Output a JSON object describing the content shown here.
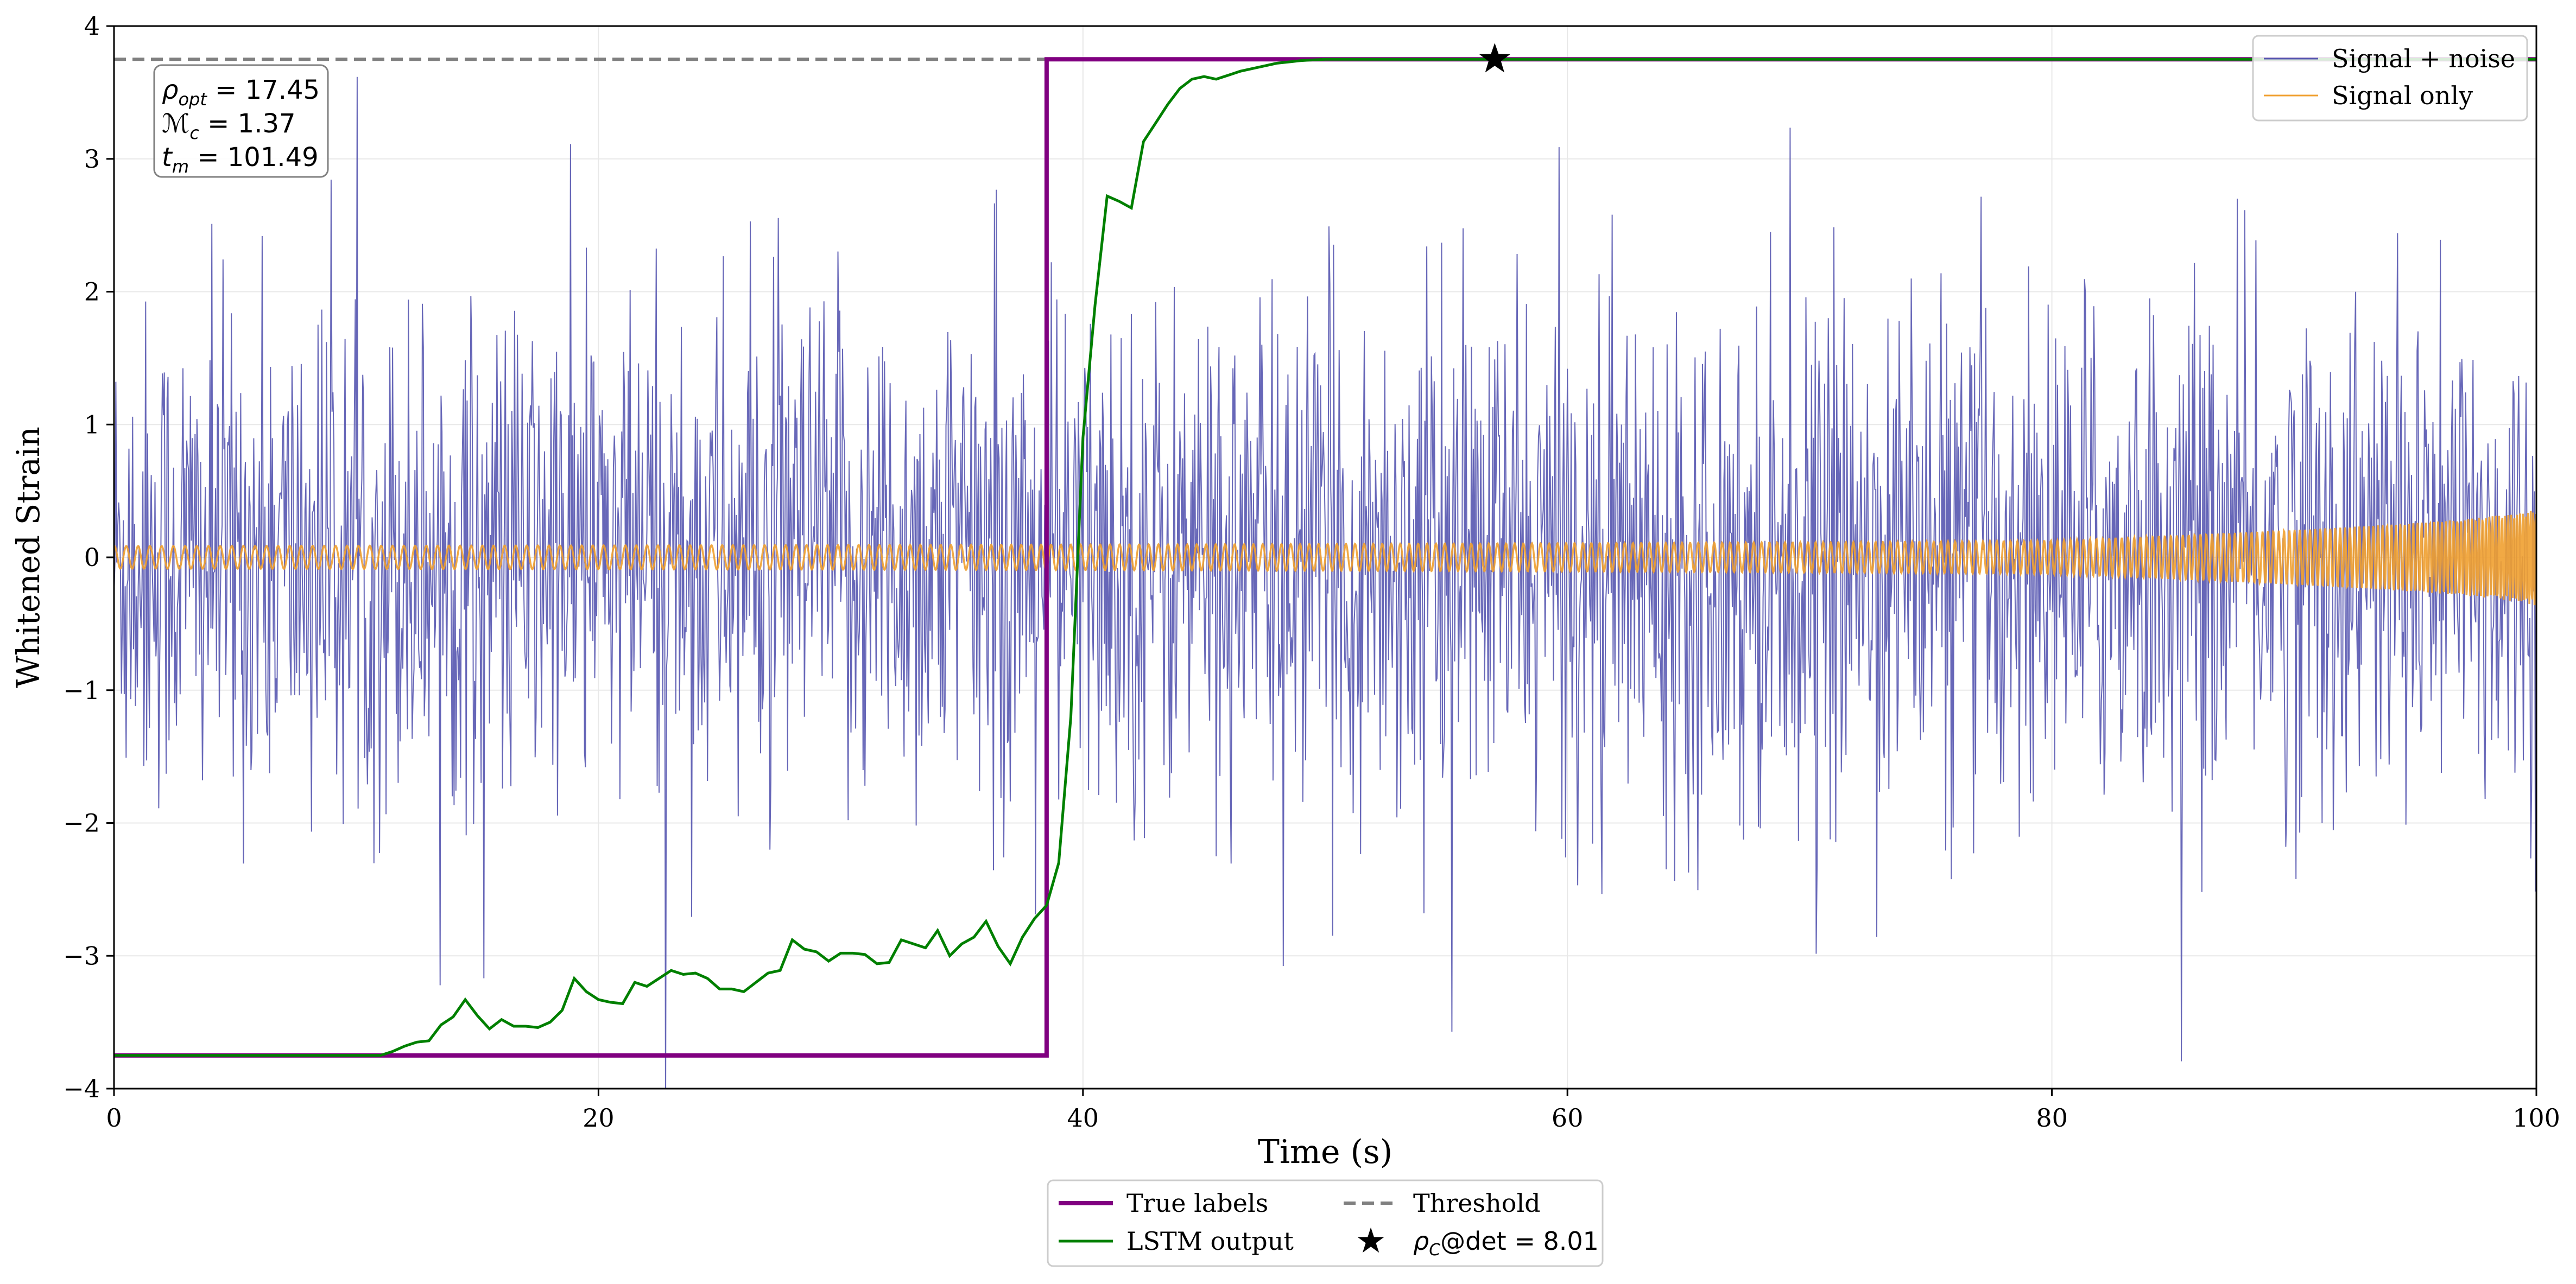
{
  "chart_data": {
    "type": "line",
    "xlabel": "Time (s)",
    "ylabel": "Whitened Strain",
    "xlim": [
      0,
      100
    ],
    "ylim": [
      -4,
      4
    ],
    "x_ticks": [
      0,
      20,
      40,
      60,
      80,
      100
    ],
    "y_ticks": [
      -4,
      -3,
      -2,
      -1,
      0,
      1,
      2,
      3,
      4
    ],
    "x_tick_labels": [
      "0",
      "20",
      "40",
      "60",
      "80",
      "100"
    ],
    "y_tick_labels": [
      "−4",
      "−3",
      "−2",
      "−1",
      "0",
      "1",
      "2",
      "3",
      "4"
    ],
    "grid": true,
    "threshold": 3.75,
    "detection": {
      "x": 57.0,
      "y": 3.75
    },
    "true_labels": {
      "name": "True labels",
      "color": "#800080",
      "x": [
        0,
        38.5,
        38.5,
        100
      ],
      "y": [
        -3.75,
        -3.75,
        3.75,
        3.75
      ]
    },
    "lstm_output": {
      "name": "LSTM output",
      "color": "#008000",
      "x": [
        0,
        11,
        11.5,
        12,
        12.5,
        13,
        13.5,
        14,
        14.5,
        15,
        15.5,
        16,
        16.5,
        17,
        17.5,
        18,
        18.5,
        19,
        19.5,
        20,
        20.5,
        21,
        21.5,
        22,
        22.5,
        23,
        23.5,
        24,
        24.5,
        25,
        25.5,
        26,
        26.5,
        27,
        27.5,
        28,
        28.5,
        29,
        29.5,
        30,
        30.5,
        31,
        31.5,
        32,
        32.5,
        33,
        33.5,
        34,
        34.5,
        35,
        35.5,
        36,
        36.5,
        37,
        37.5,
        38,
        38.5,
        39,
        39.5,
        40,
        40.5,
        41,
        41.5,
        42,
        42.5,
        43,
        43.5,
        44,
        44.5,
        45,
        45.5,
        46,
        46.5,
        47,
        47.5,
        48,
        48.5,
        49,
        50,
        51,
        52,
        100
      ],
      "y": [
        -3.75,
        -3.75,
        -3.72,
        -3.68,
        -3.65,
        -3.64,
        -3.52,
        -3.46,
        -3.33,
        -3.45,
        -3.55,
        -3.48,
        -3.53,
        -3.53,
        -3.54,
        -3.5,
        -3.41,
        -3.17,
        -3.27,
        -3.33,
        -3.35,
        -3.36,
        -3.2,
        -3.23,
        -3.17,
        -3.11,
        -3.14,
        -3.13,
        -3.17,
        -3.25,
        -3.25,
        -3.27,
        -3.2,
        -3.13,
        -3.11,
        -2.88,
        -2.95,
        -2.97,
        -3.04,
        -2.98,
        -2.98,
        -2.99,
        -3.06,
        -3.05,
        -2.88,
        -2.91,
        -2.94,
        -2.81,
        -3.0,
        -2.91,
        -2.86,
        -2.74,
        -2.93,
        -3.06,
        -2.86,
        -2.72,
        -2.62,
        -2.3,
        -1.2,
        0.9,
        1.9,
        2.72,
        2.68,
        2.63,
        3.13,
        3.27,
        3.41,
        3.53,
        3.6,
        3.62,
        3.6,
        3.63,
        3.66,
        3.68,
        3.7,
        3.72,
        3.73,
        3.74,
        3.75,
        3.75,
        3.75,
        3.75
      ]
    },
    "signal_noise": {
      "name": "Signal + noise",
      "color": "#5656B0",
      "noise_std": 0.95
    },
    "signal_only": {
      "name": "Signal only",
      "color": "#F0A030"
    },
    "legend_top": [
      "Signal + noise",
      "Signal only"
    ],
    "legend_bottom": [
      "True labels",
      "Threshold",
      "LSTM output"
    ],
    "detection_legend": {
      "base": "ρ",
      "sub": "C",
      "rest": "@det = 8.01"
    },
    "legend_positions": {
      "top": "top-right",
      "bottom": "below-plot"
    },
    "annotations": [
      {
        "base": "ρ",
        "sub": "opt",
        "rest": " = 17.45"
      },
      {
        "base": "ℳ",
        "sub": "c",
        "rest": " = 1.37"
      },
      {
        "base": "t",
        "sub": "m",
        "rest": " = 101.49"
      }
    ],
    "colors": {
      "threshold": "#808080",
      "grid": "#e8e8e8"
    }
  }
}
